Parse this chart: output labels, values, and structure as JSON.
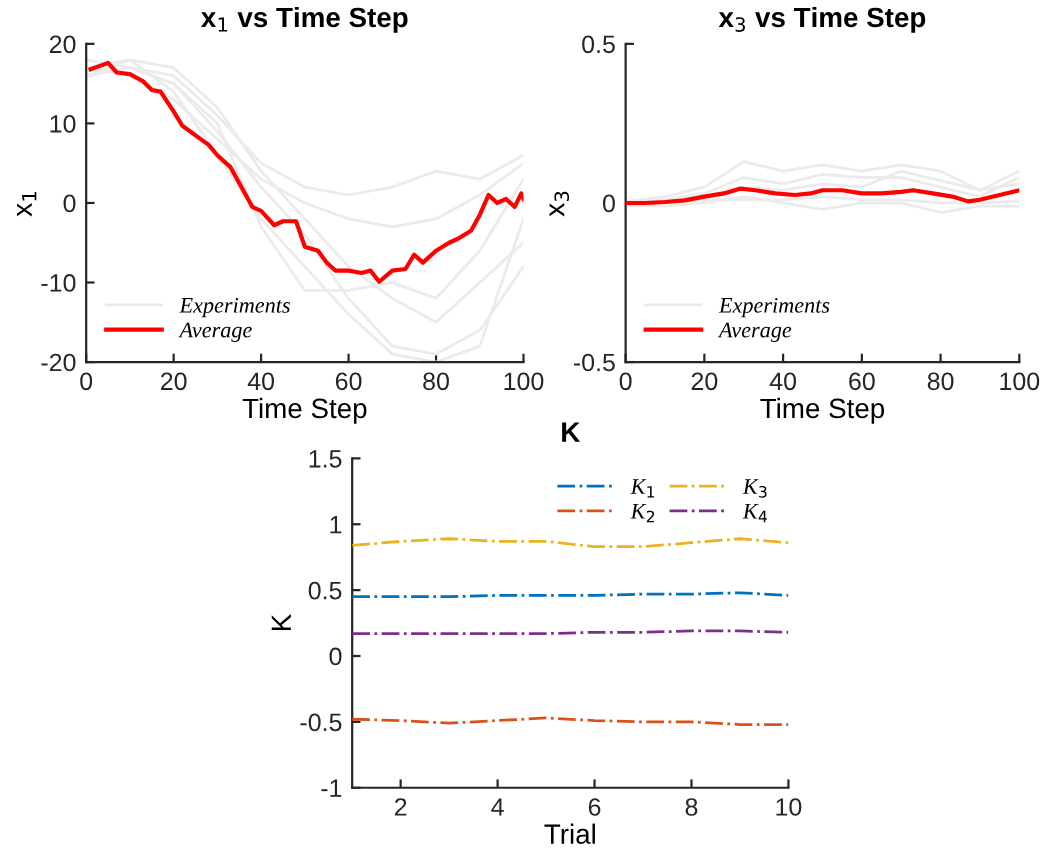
{
  "chart_data": [
    {
      "type": "line",
      "title": "x$_{1}$ vs Time Step",
      "xlabel": "Time Step",
      "ylabel": "x$_{1}$",
      "xlim": [
        0,
        100
      ],
      "ylim": [
        -20,
        20
      ],
      "xticks": [
        0,
        20,
        40,
        60,
        80,
        100
      ],
      "yticks": [
        -20,
        -10,
        0,
        10,
        20
      ],
      "grid": false,
      "legend": "bottom left",
      "line_style": "solid",
      "marker": "none",
      "series": [
        {
          "name": "Experiments",
          "color": "#ebebeb",
          "x": [
            0,
            10,
            20,
            30,
            40,
            50,
            60,
            70,
            80,
            90,
            100
          ],
          "values": [
            17,
            18,
            17,
            12,
            4,
            -2,
            -8,
            -12,
            -15,
            -10,
            -5
          ]
        },
        {
          "color": "#ebebeb",
          "x": [
            0,
            10,
            20,
            30,
            40,
            50,
            60,
            70,
            80,
            90,
            100
          ],
          "values": [
            18,
            17,
            15,
            9,
            2,
            -4,
            -12,
            -18,
            -19,
            -16,
            -8
          ]
        },
        {
          "color": "#ebebeb",
          "x": [
            0,
            10,
            20,
            30,
            40,
            50,
            60,
            70,
            80,
            90,
            100
          ],
          "values": [
            16,
            18,
            14,
            6,
            -2,
            -8,
            -14,
            -19,
            -20,
            -18,
            -2
          ]
        },
        {
          "color": "#ebebeb",
          "x": [
            0,
            10,
            20,
            30,
            40,
            50,
            60,
            70,
            80,
            90,
            100
          ],
          "values": [
            17,
            16,
            13,
            8,
            3,
            0,
            -2,
            -3,
            -2,
            1,
            5
          ]
        },
        {
          "color": "#ebebeb",
          "x": [
            0,
            10,
            20,
            30,
            40,
            50,
            60,
            70,
            80,
            90,
            100
          ],
          "values": [
            18,
            17,
            16,
            11,
            5,
            2,
            1,
            2,
            4,
            3,
            6
          ]
        },
        {
          "color": "#ebebeb",
          "x": [
            0,
            10,
            20,
            30,
            40,
            50,
            60,
            70,
            80,
            90,
            100
          ],
          "values": [
            16,
            17,
            15,
            10,
            -3,
            -11,
            -11,
            -10,
            -12,
            -6,
            3
          ]
        },
        {
          "name": "Average",
          "color": "#ff0000",
          "x": [
            1,
            3,
            5,
            7,
            10,
            13,
            15,
            17,
            20,
            22,
            25,
            28,
            30,
            33,
            35,
            38,
            40,
            43,
            45,
            48,
            50,
            53,
            55,
            57,
            60,
            63,
            65,
            67,
            70,
            73,
            75,
            77,
            80,
            83,
            85,
            88,
            90,
            92,
            94,
            96,
            98,
            99.5,
            100
          ],
          "values": [
            16.8,
            17.2,
            17.6,
            16.4,
            16.2,
            15.3,
            14.2,
            14.0,
            11.5,
            9.7,
            8.5,
            7.3,
            6,
            4.5,
            2.5,
            -0.5,
            -1,
            -2.8,
            -2.3,
            -2.3,
            -5.5,
            -6,
            -7.5,
            -8.5,
            -8.5,
            -8.8,
            -8.5,
            -9.9,
            -8.5,
            -8.3,
            -6.5,
            -7.5,
            -6,
            -5,
            -4.5,
            -3.5,
            -1.5,
            1.0,
            0,
            0.5,
            -0.5,
            1.2,
            0.5
          ]
        }
      ]
    },
    {
      "type": "line",
      "title": "x$_{3}$ vs Time Step",
      "xlabel": "Time Step",
      "ylabel": "x$_{3}$",
      "xlim": [
        0,
        100
      ],
      "ylim": [
        -0.5,
        0.5
      ],
      "xticks": [
        0,
        20,
        40,
        60,
        80,
        100
      ],
      "yticks": [
        -0.5,
        0,
        0.5
      ],
      "grid": false,
      "legend": "bottom left",
      "line_style": "solid",
      "marker": "none",
      "series": [
        {
          "name": "Experiments",
          "color": "#ebebeb",
          "x": [
            0,
            10,
            20,
            30,
            40,
            50,
            60,
            70,
            80,
            90,
            100
          ],
          "values": [
            0.005,
            0.02,
            0.05,
            0.13,
            0.1,
            0.12,
            0.1,
            0.12,
            0.1,
            0.04,
            0.1
          ]
        },
        {
          "color": "#ebebeb",
          "x": [
            0,
            10,
            20,
            30,
            40,
            50,
            60,
            70,
            80,
            90,
            100
          ],
          "values": [
            0,
            0.01,
            0.03,
            0.08,
            0.06,
            0.09,
            0.08,
            0.08,
            0.05,
            0.02,
            0.08
          ]
        },
        {
          "color": "#ebebeb",
          "x": [
            0,
            10,
            20,
            30,
            40,
            50,
            60,
            70,
            80,
            90,
            100
          ],
          "values": [
            -0.003,
            0,
            0.02,
            0.05,
            0.04,
            0.06,
            0.05,
            0.1,
            0.07,
            0.04,
            0.06
          ]
        },
        {
          "color": "#ebebeb",
          "x": [
            0,
            10,
            20,
            30,
            40,
            50,
            60,
            70,
            80,
            90,
            100
          ],
          "values": [
            -0.006,
            -0.01,
            0,
            0.02,
            0,
            -0.02,
            0,
            0,
            -0.03,
            -0.01,
            -0.01
          ]
        },
        {
          "color": "#ebebeb",
          "x": [
            0,
            10,
            20,
            30,
            40,
            50,
            60,
            70,
            80,
            90,
            100
          ],
          "values": [
            0.003,
            0,
            0.01,
            0.01,
            0.01,
            0.02,
            0.01,
            0.01,
            0,
            0,
            0.005
          ]
        },
        {
          "name": "Average",
          "color": "#ff0000",
          "x": [
            0,
            5,
            10,
            15,
            20,
            25,
            29,
            33,
            38,
            43,
            47,
            50,
            55,
            60,
            65,
            70,
            73,
            78,
            83,
            87,
            90,
            95,
            100
          ],
          "values": [
            0,
            0,
            0.003,
            0.008,
            0.02,
            0.03,
            0.045,
            0.04,
            0.03,
            0.025,
            0.03,
            0.04,
            0.04,
            0.03,
            0.03,
            0.035,
            0.04,
            0.03,
            0.02,
            0.005,
            0.01,
            0.025,
            0.04
          ]
        }
      ]
    },
    {
      "type": "line",
      "title": "K",
      "xlabel": "Trial",
      "ylabel": "K",
      "x": [
        1,
        2,
        3,
        4,
        5,
        6,
        7,
        8,
        9,
        10
      ],
      "xlim": [
        1,
        10
      ],
      "ylim": [
        -1,
        1.5
      ],
      "xticks": [
        2,
        4,
        6,
        8,
        10
      ],
      "yticks": [
        -1,
        -0.5,
        0,
        0.5,
        1,
        1.5
      ],
      "grid": false,
      "legend": "top right",
      "line_style": "dashdot",
      "marker": "none",
      "series": [
        {
          "name": "K$_{1}$",
          "color": "#0072bd",
          "values": [
            0.45,
            0.45,
            0.45,
            0.46,
            0.46,
            0.46,
            0.47,
            0.47,
            0.48,
            0.46
          ]
        },
        {
          "name": "K$_{2}$",
          "color": "#d95319",
          "values": [
            -0.48,
            -0.49,
            -0.51,
            -0.49,
            -0.47,
            -0.49,
            -0.5,
            -0.5,
            -0.52,
            -0.52
          ]
        },
        {
          "name": "K$_{3}$",
          "color": "#edb120",
          "values": [
            0.84,
            0.87,
            0.89,
            0.87,
            0.87,
            0.83,
            0.83,
            0.86,
            0.89,
            0.86
          ]
        },
        {
          "name": "K$_{4}$",
          "color": "#7e2f8e",
          "values": [
            0.17,
            0.17,
            0.17,
            0.17,
            0.17,
            0.18,
            0.18,
            0.19,
            0.19,
            0.18
          ]
        }
      ]
    }
  ]
}
